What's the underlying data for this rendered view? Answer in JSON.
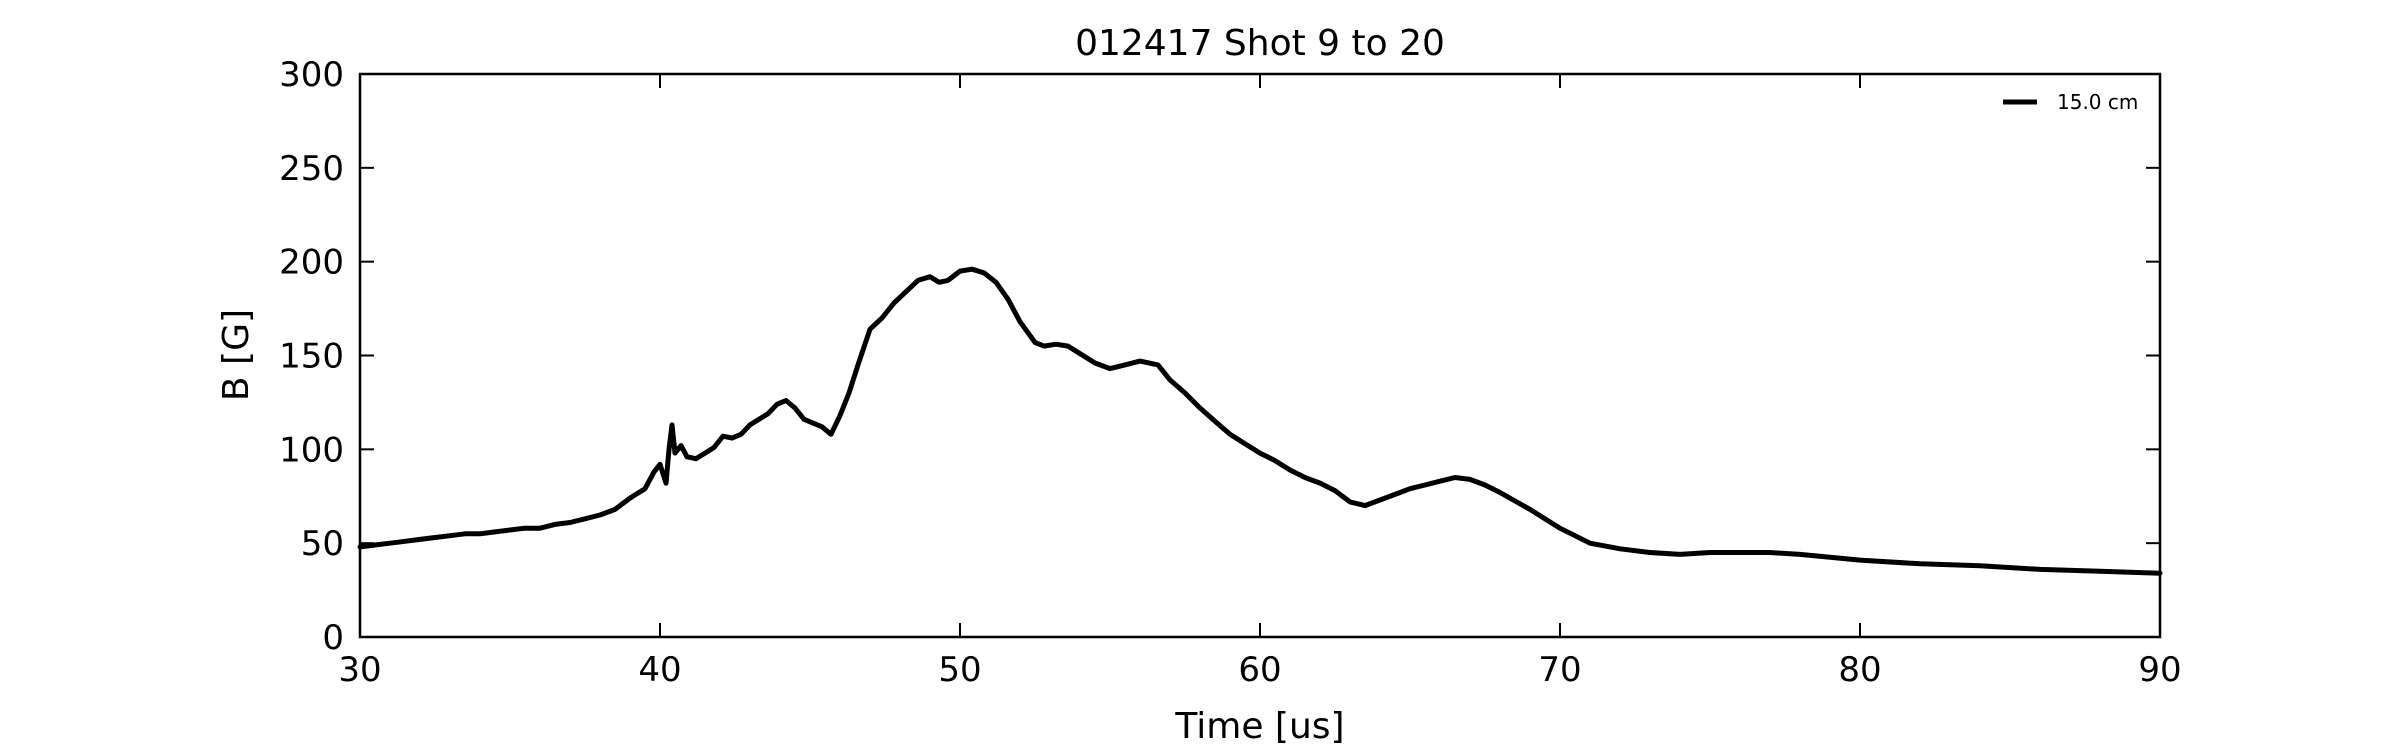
{
  "chart_data": {
    "type": "line",
    "title": "012417 Shot 9 to 20",
    "xlabel": "Time [us]",
    "ylabel": "B [G]",
    "xlim": [
      30,
      90
    ],
    "ylim": [
      0,
      300
    ],
    "xticks": [
      30,
      40,
      50,
      60,
      70,
      80,
      90
    ],
    "yticks": [
      0,
      50,
      100,
      150,
      200,
      250,
      300
    ],
    "grid": false,
    "legend_position": "top-right",
    "series": [
      {
        "name": "15.0 cm",
        "color": "#000000",
        "x": [
          30.0,
          30.5,
          31.0,
          31.5,
          32.0,
          32.5,
          33.0,
          33.5,
          34.0,
          34.5,
          35.0,
          35.5,
          36.0,
          36.5,
          37.0,
          37.5,
          38.0,
          38.5,
          39.0,
          39.5,
          39.8,
          40.0,
          40.2,
          40.3,
          40.4,
          40.5,
          40.7,
          40.9,
          41.2,
          41.5,
          41.8,
          42.1,
          42.4,
          42.7,
          43.0,
          43.3,
          43.6,
          43.9,
          44.2,
          44.5,
          44.8,
          45.1,
          45.4,
          45.7,
          46.0,
          46.3,
          46.6,
          47.0,
          47.4,
          47.8,
          48.2,
          48.6,
          49.0,
          49.3,
          49.6,
          50.0,
          50.4,
          50.8,
          51.2,
          51.6,
          52.0,
          52.5,
          52.8,
          53.2,
          53.6,
          54.0,
          54.5,
          55.0,
          55.5,
          56.0,
          56.6,
          57.0,
          57.5,
          58.0,
          58.5,
          59.0,
          59.5,
          60.0,
          60.5,
          61.0,
          61.5,
          62.0,
          62.5,
          63.0,
          63.5,
          64.0,
          64.5,
          65.0,
          65.5,
          66.0,
          66.5,
          67.0,
          67.5,
          68.0,
          69.0,
          70.0,
          71.0,
          72.0,
          73.0,
          74.0,
          75.0,
          76.0,
          77.0,
          78.0,
          80.0,
          82.0,
          84.0,
          86.0,
          88.0,
          90.0
        ],
        "y": [
          48,
          49,
          50,
          51,
          52,
          53,
          54,
          55,
          55,
          56,
          57,
          58,
          58,
          60,
          61,
          63,
          65,
          68,
          74,
          79,
          88,
          92,
          82,
          100,
          113,
          98,
          102,
          96,
          95,
          98,
          101,
          107,
          106,
          108,
          113,
          116,
          119,
          124,
          126,
          122,
          116,
          114,
          112,
          108,
          118,
          130,
          145,
          164,
          170,
          178,
          184,
          190,
          192,
          189,
          190,
          195,
          196,
          194,
          189,
          180,
          168,
          157,
          155,
          156,
          155,
          151,
          146,
          143,
          145,
          147,
          145,
          137,
          130,
          122,
          115,
          108,
          103,
          98,
          94,
          89,
          85,
          82,
          78,
          72,
          70,
          73,
          76,
          79,
          81,
          83,
          85,
          84,
          81,
          77,
          68,
          58,
          50,
          47,
          45,
          44,
          45,
          45,
          45,
          44,
          41,
          39,
          38,
          36,
          35,
          34
        ]
      }
    ]
  }
}
